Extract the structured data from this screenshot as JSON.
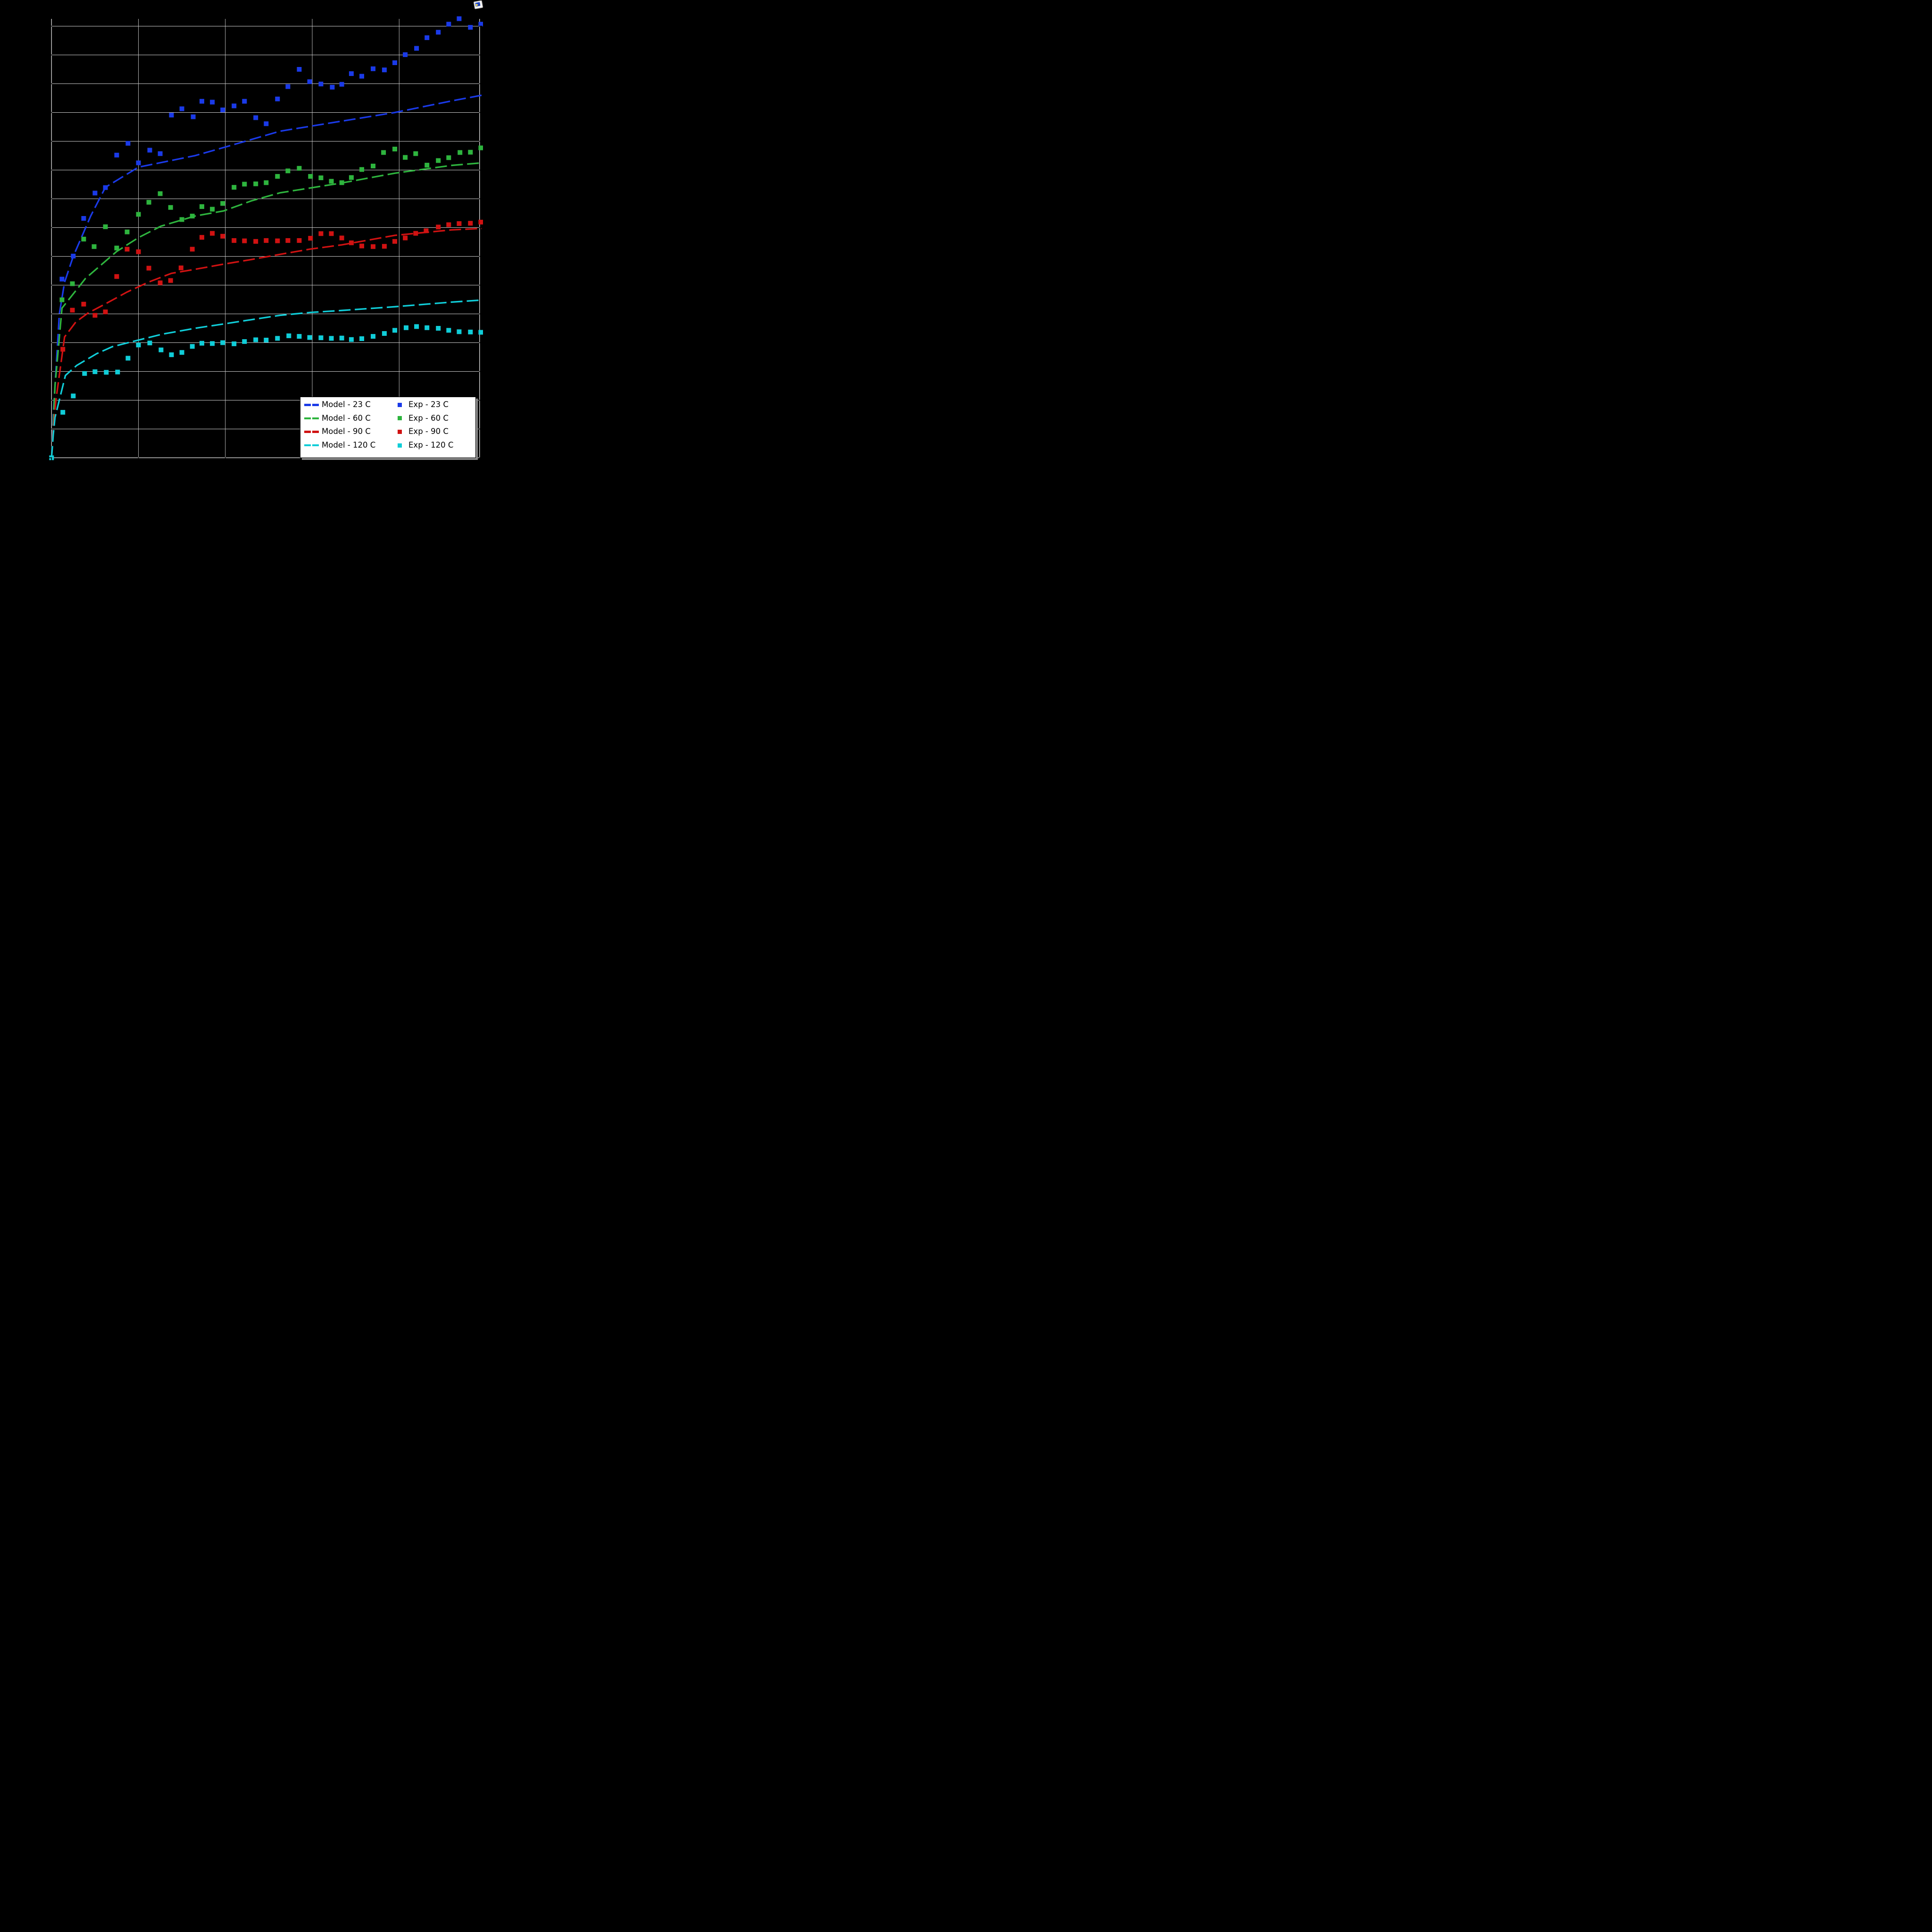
{
  "window": {
    "app_icon": "image-viewer-app-icon"
  },
  "colors": {
    "blue": "#1a3ae8",
    "green": "#2eb43e",
    "red": "#d01212",
    "cyan": "#10cdd8",
    "grid": "#c8c8c8",
    "spine": "#e6e6e6",
    "tick": "#000000",
    "background": "#000000",
    "legend_bg": "#ffffff",
    "legend_border": "#000000",
    "legend_shadow": "#8a8a8a",
    "legend_text": "#000000"
  },
  "chart_data": {
    "type": "scatter",
    "title": "",
    "xlabel": "",
    "ylabel": "",
    "note": "Axis tick labels are not visible in the image (black text on black background). Coordinates are given in gridline units: x gridlines every 1 unit (0-4), y gridlines every 1 unit (0-15).",
    "layout": {
      "x_range": [
        0,
        4.93
      ],
      "y_range": [
        0,
        15.26
      ],
      "x_gridlines": [
        1,
        2,
        3,
        4
      ],
      "y_gridlines": [
        1,
        2,
        3,
        4,
        5,
        6,
        7,
        8,
        9,
        10,
        11,
        12,
        13,
        14,
        15
      ],
      "grid": true,
      "tick_labels_visible": false,
      "legend_position": "lower right"
    },
    "legend": {
      "rows": [
        {
          "model_label": "Model - 23 C",
          "exp_label": "Exp - 23 C",
          "color_key": "blue"
        },
        {
          "model_label": "Model - 60 C",
          "exp_label": "Exp - 60 C",
          "color_key": "green"
        },
        {
          "model_label": "Model - 90 C",
          "exp_label": "Exp - 90 C",
          "color_key": "red"
        },
        {
          "model_label": "Model - 120 C",
          "exp_label": "Exp - 120 C",
          "color_key": "cyan"
        }
      ]
    },
    "series": [
      {
        "name": "Model - 23 C",
        "kind": "line",
        "style": "dashed",
        "color_key": "blue",
        "points": [
          [
            0,
            0
          ],
          [
            0.02,
            1.5
          ],
          [
            0.05,
            3.0
          ],
          [
            0.09,
            5.0
          ],
          [
            0.15,
            6.1
          ],
          [
            0.25,
            7.0
          ],
          [
            0.45,
            8.4
          ],
          [
            0.62,
            9.4
          ],
          [
            1.0,
            10.1
          ],
          [
            1.65,
            10.5
          ],
          [
            2.0,
            10.8
          ],
          [
            2.63,
            11.35
          ],
          [
            3.34,
            11.7
          ],
          [
            3.95,
            12.0
          ],
          [
            4.6,
            12.4
          ],
          [
            4.95,
            12.6
          ]
        ]
      },
      {
        "name": "Model - 60 C",
        "kind": "line",
        "style": "dashed",
        "color_key": "green",
        "points": [
          [
            0,
            0
          ],
          [
            0.02,
            1.2
          ],
          [
            0.04,
            2.5
          ],
          [
            0.12,
            5.2
          ],
          [
            0.39,
            6.23
          ],
          [
            0.75,
            7.17
          ],
          [
            1.0,
            7.65
          ],
          [
            1.26,
            8.05
          ],
          [
            1.65,
            8.4
          ],
          [
            1.98,
            8.58
          ],
          [
            2.3,
            8.93
          ],
          [
            2.63,
            9.21
          ],
          [
            3.34,
            9.55
          ],
          [
            3.95,
            9.89
          ],
          [
            4.6,
            10.16
          ],
          [
            4.95,
            10.25
          ]
        ]
      },
      {
        "name": "Model - 90 C",
        "kind": "line",
        "style": "dashed",
        "color_key": "red",
        "points": [
          [
            0,
            0
          ],
          [
            0.02,
            1.0
          ],
          [
            0.05,
            2.0
          ],
          [
            0.15,
            4.2
          ],
          [
            0.28,
            4.72
          ],
          [
            0.42,
            5.03
          ],
          [
            0.62,
            5.35
          ],
          [
            0.87,
            5.76
          ],
          [
            1.12,
            6.11
          ],
          [
            1.38,
            6.41
          ],
          [
            1.65,
            6.55
          ],
          [
            1.98,
            6.73
          ],
          [
            2.3,
            6.89
          ],
          [
            2.63,
            7.07
          ],
          [
            2.97,
            7.25
          ],
          [
            3.34,
            7.4
          ],
          [
            3.95,
            7.73
          ],
          [
            4.6,
            7.92
          ],
          [
            4.95,
            7.97
          ]
        ]
      },
      {
        "name": "Model - 120 C",
        "kind": "line",
        "style": "dashed",
        "color_key": "cyan",
        "points": [
          [
            0,
            0
          ],
          [
            0.02,
            0.8
          ],
          [
            0.04,
            1.4
          ],
          [
            0.16,
            2.86
          ],
          [
            0.29,
            3.21
          ],
          [
            0.52,
            3.62
          ],
          [
            0.7,
            3.86
          ],
          [
            1.0,
            4.09
          ],
          [
            1.28,
            4.3
          ],
          [
            1.65,
            4.5
          ],
          [
            1.98,
            4.65
          ],
          [
            2.3,
            4.8
          ],
          [
            2.63,
            4.95
          ],
          [
            2.97,
            5.05
          ],
          [
            3.34,
            5.12
          ],
          [
            3.95,
            5.25
          ],
          [
            4.6,
            5.41
          ],
          [
            4.95,
            5.48
          ]
        ]
      },
      {
        "name": "Exp - 23 C",
        "kind": "scatter",
        "marker": "square",
        "color_key": "blue",
        "points": [
          [
            0.12,
            6.21
          ],
          [
            0.25,
            7.01
          ],
          [
            0.37,
            8.32
          ],
          [
            0.5,
            9.2
          ],
          [
            0.62,
            9.39
          ],
          [
            0.75,
            10.52
          ],
          [
            0.88,
            10.93
          ],
          [
            1.0,
            10.25
          ],
          [
            1.13,
            10.69
          ],
          [
            1.25,
            10.57
          ],
          [
            1.38,
            11.91
          ],
          [
            1.5,
            12.13
          ],
          [
            1.63,
            11.85
          ],
          [
            1.73,
            12.39
          ],
          [
            1.85,
            12.36
          ],
          [
            1.97,
            12.09
          ],
          [
            2.1,
            12.23
          ],
          [
            2.22,
            12.39
          ],
          [
            2.35,
            11.82
          ],
          [
            2.47,
            11.61
          ],
          [
            2.6,
            12.47
          ],
          [
            2.72,
            12.9
          ],
          [
            2.85,
            13.5
          ],
          [
            2.97,
            13.07
          ],
          [
            3.1,
            12.99
          ],
          [
            3.23,
            12.88
          ],
          [
            3.34,
            12.98
          ],
          [
            3.45,
            13.35
          ],
          [
            3.57,
            13.26
          ],
          [
            3.7,
            13.52
          ],
          [
            3.83,
            13.48
          ],
          [
            3.95,
            13.73
          ],
          [
            4.07,
            14.01
          ],
          [
            4.2,
            14.23
          ],
          [
            4.32,
            14.6
          ],
          [
            4.45,
            14.79
          ],
          [
            4.57,
            15.07
          ],
          [
            4.69,
            15.26
          ],
          [
            4.82,
            14.96
          ],
          [
            4.94,
            15.07
          ]
        ]
      },
      {
        "name": "Exp - 60 C",
        "kind": "scatter",
        "marker": "square",
        "color_key": "green",
        "points": [
          [
            0.12,
            5.49
          ],
          [
            0.24,
            6.05
          ],
          [
            0.37,
            7.6
          ],
          [
            0.49,
            7.34
          ],
          [
            0.62,
            8.03
          ],
          [
            0.75,
            7.29
          ],
          [
            0.87,
            7.85
          ],
          [
            1.0,
            8.46
          ],
          [
            1.12,
            8.88
          ],
          [
            1.25,
            9.18
          ],
          [
            1.37,
            8.7
          ],
          [
            1.5,
            8.28
          ],
          [
            1.62,
            8.4
          ],
          [
            1.73,
            8.73
          ],
          [
            1.85,
            8.64
          ],
          [
            1.97,
            8.84
          ],
          [
            2.1,
            9.4
          ],
          [
            2.22,
            9.51
          ],
          [
            2.35,
            9.52
          ],
          [
            2.47,
            9.56
          ],
          [
            2.6,
            9.78
          ],
          [
            2.72,
            9.97
          ],
          [
            2.85,
            10.06
          ],
          [
            2.98,
            9.78
          ],
          [
            3.1,
            9.73
          ],
          [
            3.22,
            9.61
          ],
          [
            3.34,
            9.56
          ],
          [
            3.45,
            9.74
          ],
          [
            3.57,
            10.02
          ],
          [
            3.7,
            10.14
          ],
          [
            3.82,
            10.61
          ],
          [
            3.95,
            10.73
          ],
          [
            4.07,
            10.44
          ],
          [
            4.19,
            10.57
          ],
          [
            4.32,
            10.17
          ],
          [
            4.45,
            10.33
          ],
          [
            4.57,
            10.43
          ],
          [
            4.7,
            10.61
          ],
          [
            4.82,
            10.62
          ],
          [
            4.94,
            10.77
          ]
        ]
      },
      {
        "name": "Exp - 90 C",
        "kind": "scatter",
        "marker": "square",
        "color_key": "red",
        "points": [
          [
            0.13,
            3.77
          ],
          [
            0.24,
            5.13
          ],
          [
            0.37,
            5.34
          ],
          [
            0.5,
            4.95
          ],
          [
            0.62,
            5.07
          ],
          [
            0.75,
            6.3
          ],
          [
            0.87,
            7.25
          ],
          [
            1.0,
            7.16
          ],
          [
            1.12,
            6.59
          ],
          [
            1.25,
            6.08
          ],
          [
            1.37,
            6.16
          ],
          [
            1.49,
            6.6
          ],
          [
            1.62,
            7.25
          ],
          [
            1.73,
            7.66
          ],
          [
            1.85,
            7.8
          ],
          [
            1.97,
            7.7
          ],
          [
            2.1,
            7.55
          ],
          [
            2.22,
            7.54
          ],
          [
            2.35,
            7.52
          ],
          [
            2.47,
            7.55
          ],
          [
            2.6,
            7.54
          ],
          [
            2.72,
            7.55
          ],
          [
            2.85,
            7.55
          ],
          [
            2.98,
            7.63
          ],
          [
            3.1,
            7.79
          ],
          [
            3.22,
            7.79
          ],
          [
            3.34,
            7.64
          ],
          [
            3.45,
            7.47
          ],
          [
            3.57,
            7.36
          ],
          [
            3.7,
            7.34
          ],
          [
            3.83,
            7.35
          ],
          [
            3.95,
            7.52
          ],
          [
            4.07,
            7.64
          ],
          [
            4.19,
            7.8
          ],
          [
            4.31,
            7.89
          ],
          [
            4.45,
            8.02
          ],
          [
            4.57,
            8.1
          ],
          [
            4.69,
            8.14
          ],
          [
            4.82,
            8.15
          ],
          [
            4.94,
            8.19
          ]
        ]
      },
      {
        "name": "Exp - 120 C",
        "kind": "scatter",
        "marker": "square",
        "color_key": "cyan",
        "points": [
          [
            0,
            0
          ],
          [
            0.13,
            1.58
          ],
          [
            0.25,
            2.15
          ],
          [
            0.38,
            2.93
          ],
          [
            0.5,
            2.99
          ],
          [
            0.63,
            2.97
          ],
          [
            0.76,
            2.98
          ],
          [
            0.88,
            3.46
          ],
          [
            1.0,
            3.92
          ],
          [
            1.13,
            3.99
          ],
          [
            1.26,
            3.75
          ],
          [
            1.38,
            3.58
          ],
          [
            1.5,
            3.66
          ],
          [
            1.62,
            3.87
          ],
          [
            1.73,
            3.98
          ],
          [
            1.85,
            3.97
          ],
          [
            1.97,
            4.0
          ],
          [
            2.1,
            3.96
          ],
          [
            2.22,
            4.04
          ],
          [
            2.35,
            4.1
          ],
          [
            2.47,
            4.09
          ],
          [
            2.6,
            4.15
          ],
          [
            2.73,
            4.24
          ],
          [
            2.85,
            4.22
          ],
          [
            2.97,
            4.18
          ],
          [
            3.1,
            4.17
          ],
          [
            3.22,
            4.15
          ],
          [
            3.34,
            4.16
          ],
          [
            3.45,
            4.11
          ],
          [
            3.57,
            4.14
          ],
          [
            3.7,
            4.22
          ],
          [
            3.83,
            4.32
          ],
          [
            3.95,
            4.43
          ],
          [
            4.08,
            4.52
          ],
          [
            4.2,
            4.56
          ],
          [
            4.32,
            4.52
          ],
          [
            4.45,
            4.5
          ],
          [
            4.57,
            4.43
          ],
          [
            4.69,
            4.38
          ],
          [
            4.82,
            4.37
          ],
          [
            4.94,
            4.36
          ]
        ]
      }
    ]
  }
}
